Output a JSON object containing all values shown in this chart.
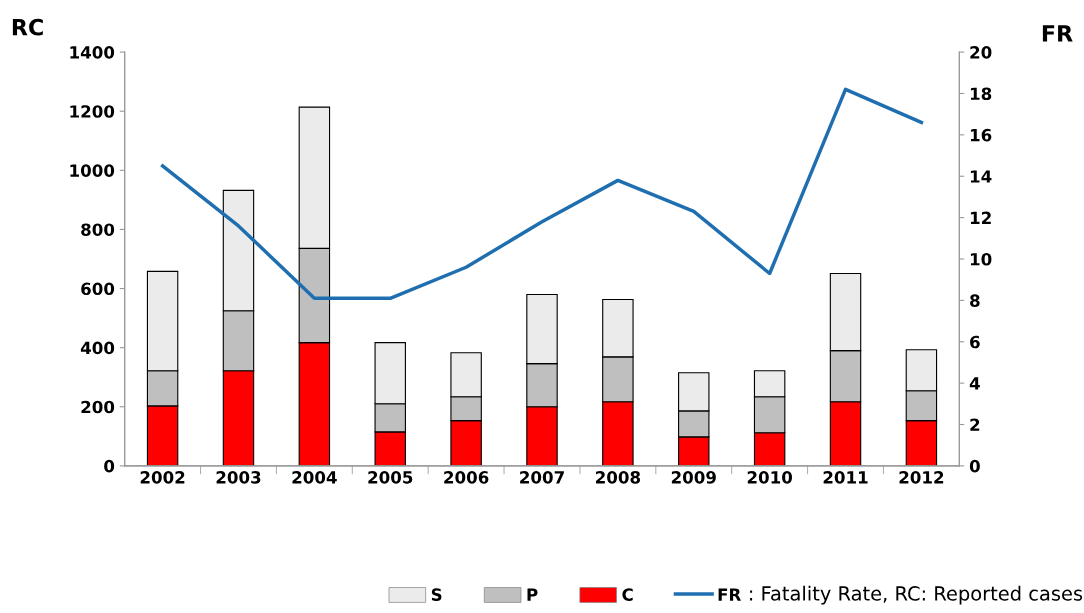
{
  "chart_data": {
    "type": "bar",
    "stacked": true,
    "ylabel": "RC",
    "y2label": "FR",
    "categories": [
      "2002",
      "2003",
      "2004",
      "2005",
      "2006",
      "2007",
      "2008",
      "2009",
      "2010",
      "2011",
      "2012"
    ],
    "series": [
      {
        "name": "C",
        "color": "#ff0000",
        "values": [
          203,
          322,
          417,
          115,
          153,
          200,
          217,
          98,
          112,
          217,
          153
        ]
      },
      {
        "name": "P",
        "color": "#bfbfbf",
        "values": [
          119,
          203,
          319,
          95,
          81,
          146,
          152,
          88,
          122,
          173,
          101
        ]
      },
      {
        "name": "S",
        "color": "#ebebeb",
        "values": [
          336,
          407,
          478,
          207,
          149,
          234,
          194,
          129,
          88,
          261,
          139
        ]
      },
      {
        "name": "FR",
        "type": "line",
        "axis": "y2",
        "color": "#1f6fb0",
        "values": [
          14.5,
          11.6,
          8.1,
          8.1,
          9.6,
          11.8,
          13.8,
          12.3,
          9.3,
          18.2,
          16.6
        ]
      }
    ],
    "ylim": [
      0,
      1400
    ],
    "yticks": [
      0,
      200,
      400,
      600,
      800,
      1000,
      1200,
      1400
    ],
    "y2lim": [
      0,
      20
    ],
    "y2ticks": [
      0,
      2,
      4,
      6,
      8,
      10,
      12,
      14,
      16,
      18,
      20
    ],
    "annotations": [
      ": Fatality Rate, RC: Reported cases"
    ],
    "grid": false,
    "legend": "bottom"
  }
}
